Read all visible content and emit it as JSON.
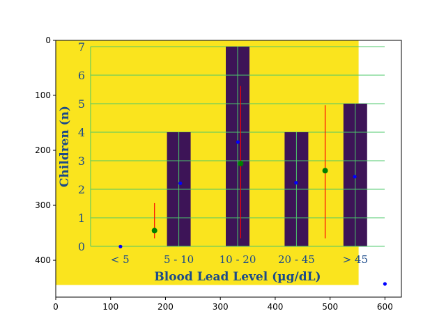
{
  "chart_data": {
    "type": "bar",
    "title": "",
    "outer_axes": {
      "xlim": [
        0,
        630
      ],
      "ylim": [
        467,
        0
      ],
      "x_ticks": [
        0,
        100,
        200,
        300,
        400,
        500,
        600
      ],
      "y_ticks": [
        0,
        100,
        200,
        300,
        400
      ],
      "x_tick_labels": [
        "0",
        "100",
        "200",
        "300",
        "400",
        "500",
        "600"
      ],
      "y_tick_labels": [
        "0",
        "100",
        "200",
        "300",
        "400"
      ]
    },
    "embedded_chart": {
      "background": "#fae41e",
      "bar_color": "#3d1457",
      "grid_color": "#4cc86b",
      "text_color": "#1a4a8a",
      "categories": [
        "< 5",
        "5 - 10",
        "10 - 20",
        "20 - 45",
        "> 45"
      ],
      "values": [
        0,
        4,
        7,
        4,
        5
      ],
      "xlabel": "Blood Lead Level (µg/dL)",
      "ylabel": "Children (n)",
      "ylim": [
        0,
        7
      ],
      "y_tick_labels": [
        "0",
        "1",
        "2",
        "3",
        "4",
        "5",
        "6",
        "7"
      ]
    },
    "overlays": {
      "blue_points": [
        [
          118,
          375
        ],
        [
          227,
          260
        ],
        [
          332,
          185
        ],
        [
          438,
          259
        ],
        [
          545,
          248
        ],
        [
          600,
          443
        ]
      ],
      "green_points": [
        [
          180,
          346
        ],
        [
          337,
          224
        ],
        [
          491,
          237
        ]
      ],
      "red_lines": [
        {
          "x": 180,
          "y_top": 296,
          "y_bottom": 360
        },
        {
          "x": 337,
          "y_top": 83,
          "y_bottom": 360
        },
        {
          "x": 491,
          "y_top": 118,
          "y_bottom": 360
        }
      ]
    },
    "colors": {
      "blue": "#0000ff",
      "green": "#008000",
      "red": "#ff0000"
    }
  }
}
